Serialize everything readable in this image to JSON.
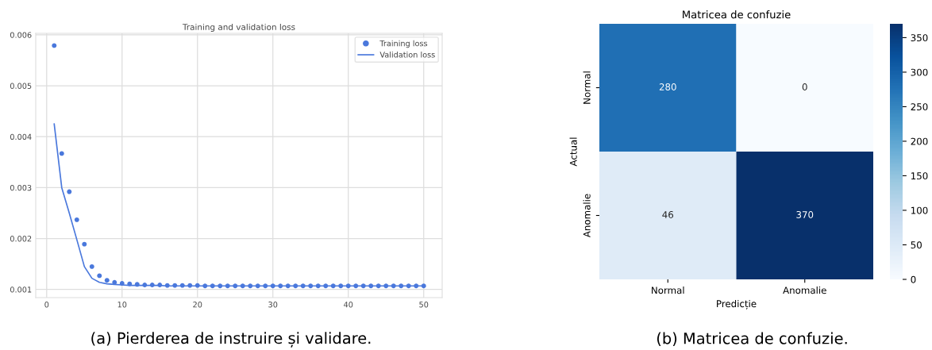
{
  "chart_data": [
    {
      "type": "line",
      "title": "Training and validation loss",
      "x": [
        1,
        2,
        3,
        4,
        5,
        6,
        7,
        8,
        9,
        10,
        11,
        12,
        13,
        14,
        15,
        16,
        17,
        18,
        19,
        20,
        21,
        22,
        23,
        24,
        25,
        26,
        27,
        28,
        29,
        30,
        31,
        32,
        33,
        34,
        35,
        36,
        37,
        38,
        39,
        40,
        41,
        42,
        43,
        44,
        45,
        46,
        47,
        48,
        49,
        50
      ],
      "series": [
        {
          "name": "Training loss",
          "type": "scatter",
          "color": "#4a78dc",
          "marker": "circle",
          "values": [
            0.00579,
            0.00367,
            0.00292,
            0.00237,
            0.00189,
            0.00145,
            0.00127,
            0.00118,
            0.00114,
            0.00112,
            0.00111,
            0.0011,
            0.00109,
            0.00109,
            0.00109,
            0.00108,
            0.00108,
            0.00108,
            0.00108,
            0.00108,
            0.00107,
            0.00107,
            0.00107,
            0.00107,
            0.00107,
            0.00107,
            0.00107,
            0.00107,
            0.00107,
            0.00107,
            0.00107,
            0.00107,
            0.00107,
            0.00107,
            0.00107,
            0.00107,
            0.00107,
            0.00107,
            0.00107,
            0.00107,
            0.00107,
            0.00107,
            0.00107,
            0.00107,
            0.00107,
            0.00107,
            0.00107,
            0.00107,
            0.00107,
            0.00107
          ]
        },
        {
          "name": "Validation loss",
          "type": "line",
          "color": "#4a78dc",
          "line_style": "solid",
          "values": [
            0.00425,
            0.003,
            0.0025,
            0.00198,
            0.00145,
            0.00122,
            0.00114,
            0.00111,
            0.0011,
            0.00109,
            0.00108,
            0.00108,
            0.00108,
            0.00108,
            0.00108,
            0.00107,
            0.00107,
            0.00107,
            0.00107,
            0.00107,
            0.00107,
            0.00107,
            0.00107,
            0.00107,
            0.00107,
            0.00107,
            0.00107,
            0.00107,
            0.00107,
            0.00107,
            0.00107,
            0.00107,
            0.00107,
            0.00107,
            0.00107,
            0.00107,
            0.00107,
            0.00107,
            0.00107,
            0.00107,
            0.00107,
            0.00107,
            0.00107,
            0.00107,
            0.00107,
            0.00107,
            0.00107,
            0.00107,
            0.00107,
            0.00107
          ]
        }
      ],
      "xlim": [
        -1.45,
        52.45
      ],
      "xticks": [
        0,
        10,
        20,
        30,
        40,
        50
      ],
      "ylim": [
        0.00084,
        0.00603
      ],
      "yticks": [
        0.001,
        0.002,
        0.003,
        0.004,
        0.005,
        0.006
      ],
      "grid": true,
      "legend": "top right",
      "annotations": [
        "(a) Pierderea de instruire și validare."
      ]
    },
    {
      "type": "heatmap",
      "title": "Matricea de confuzie",
      "xlabel": "Predicție",
      "ylabel": "Actual",
      "categories": [
        "Normal",
        "Anomalie"
      ],
      "y_categories": [
        "Normal",
        "Anomalie"
      ],
      "cells": [
        [
          280,
          0
        ],
        [
          46,
          370
        ]
      ],
      "data_labels": true,
      "clim": [
        0,
        370
      ],
      "cticks": [
        0,
        50,
        100,
        150,
        200,
        250,
        300,
        350
      ],
      "annotations": [
        "(b) Matricea de confuzie."
      ]
    }
  ]
}
